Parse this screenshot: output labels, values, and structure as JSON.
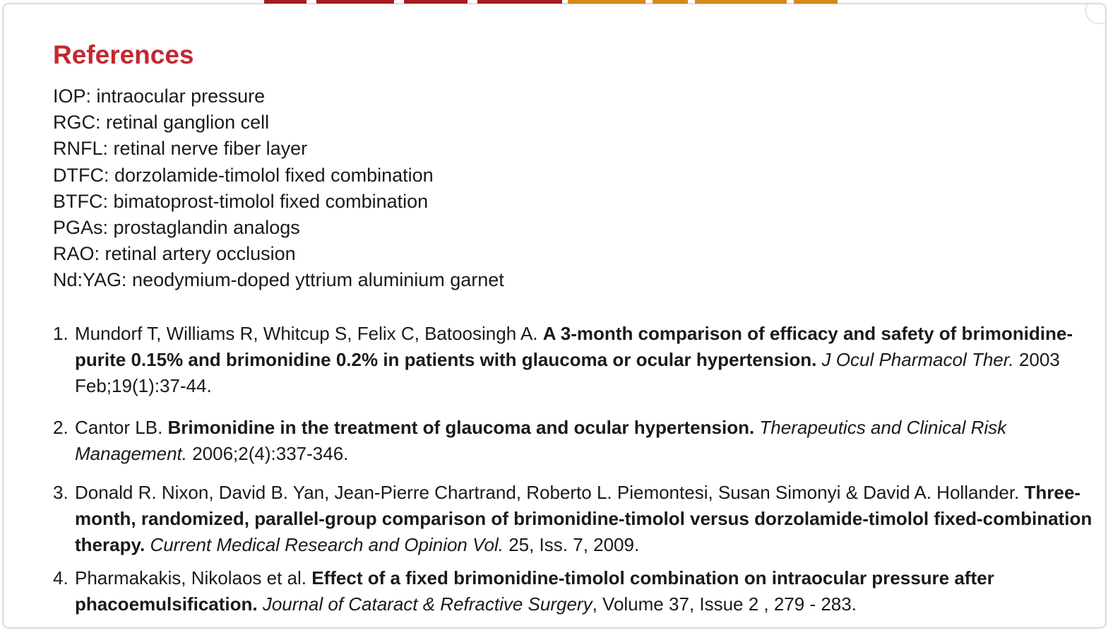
{
  "title": "References",
  "abbreviations": [
    "IOP: intraocular pressure",
    "RGC: retinal ganglion cell",
    "RNFL: retinal nerve fiber layer",
    "DTFC: dorzolamide-timolol fixed combination",
    "BTFC: bimatoprost-timolol fixed combination",
    "PGAs: prostaglandin analogs",
    "RAO: retinal artery occlusion",
    "Nd:YAG: neodymium-doped yttrium aluminium garnet"
  ],
  "references": [
    {
      "number": "1.",
      "authors": "Mundorf T, Williams R, Whitcup S, Felix C, Batoosingh A. ",
      "title": "A 3-month comparison of efficacy and safety of brimonidine-purite 0.15% and brimonidine 0.2% in patients with glaucoma or ocular hypertension.",
      "journal": " J Ocul Pharmacol Ther.",
      "details": " 2003 Feb;19(1):37-44."
    },
    {
      "number": "2.",
      "authors": "Cantor LB. ",
      "title": "Brimonidine in the treatment of glaucoma and ocular hypertension.",
      "journal": " Therapeutics and Clinical Risk Management.",
      "details": " 2006;2(4):337-346."
    },
    {
      "number": "3.",
      "authors": "Donald R. Nixon, David B. Yan, Jean-Pierre Chartrand, Roberto L. Piemontesi, Susan Simonyi & David A. Hollander. ",
      "title": "Three-month, randomized, parallel-group comparison of brimonidine-timolol versus dorzolamide-timolol fixed-combination therapy.",
      "journal": " Current Medical Research and Opinion Vol.",
      "details": " 25, Iss. 7, 2009."
    },
    {
      "number": "4.",
      "authors": "Pharmakakis, Nikolaos et al. ",
      "title": "Effect of a fixed brimonidine-timolol combination on intraocular pressure after phacoemulsification.",
      "journal": " Journal of Cataract & Refractive Surgery",
      "details": ", Volume 37, Issue 2 , 279 - 283."
    }
  ],
  "colors": {
    "heading": "#c3282e",
    "decor_red": "#a81c22",
    "decor_orange": "#d98a1e"
  }
}
